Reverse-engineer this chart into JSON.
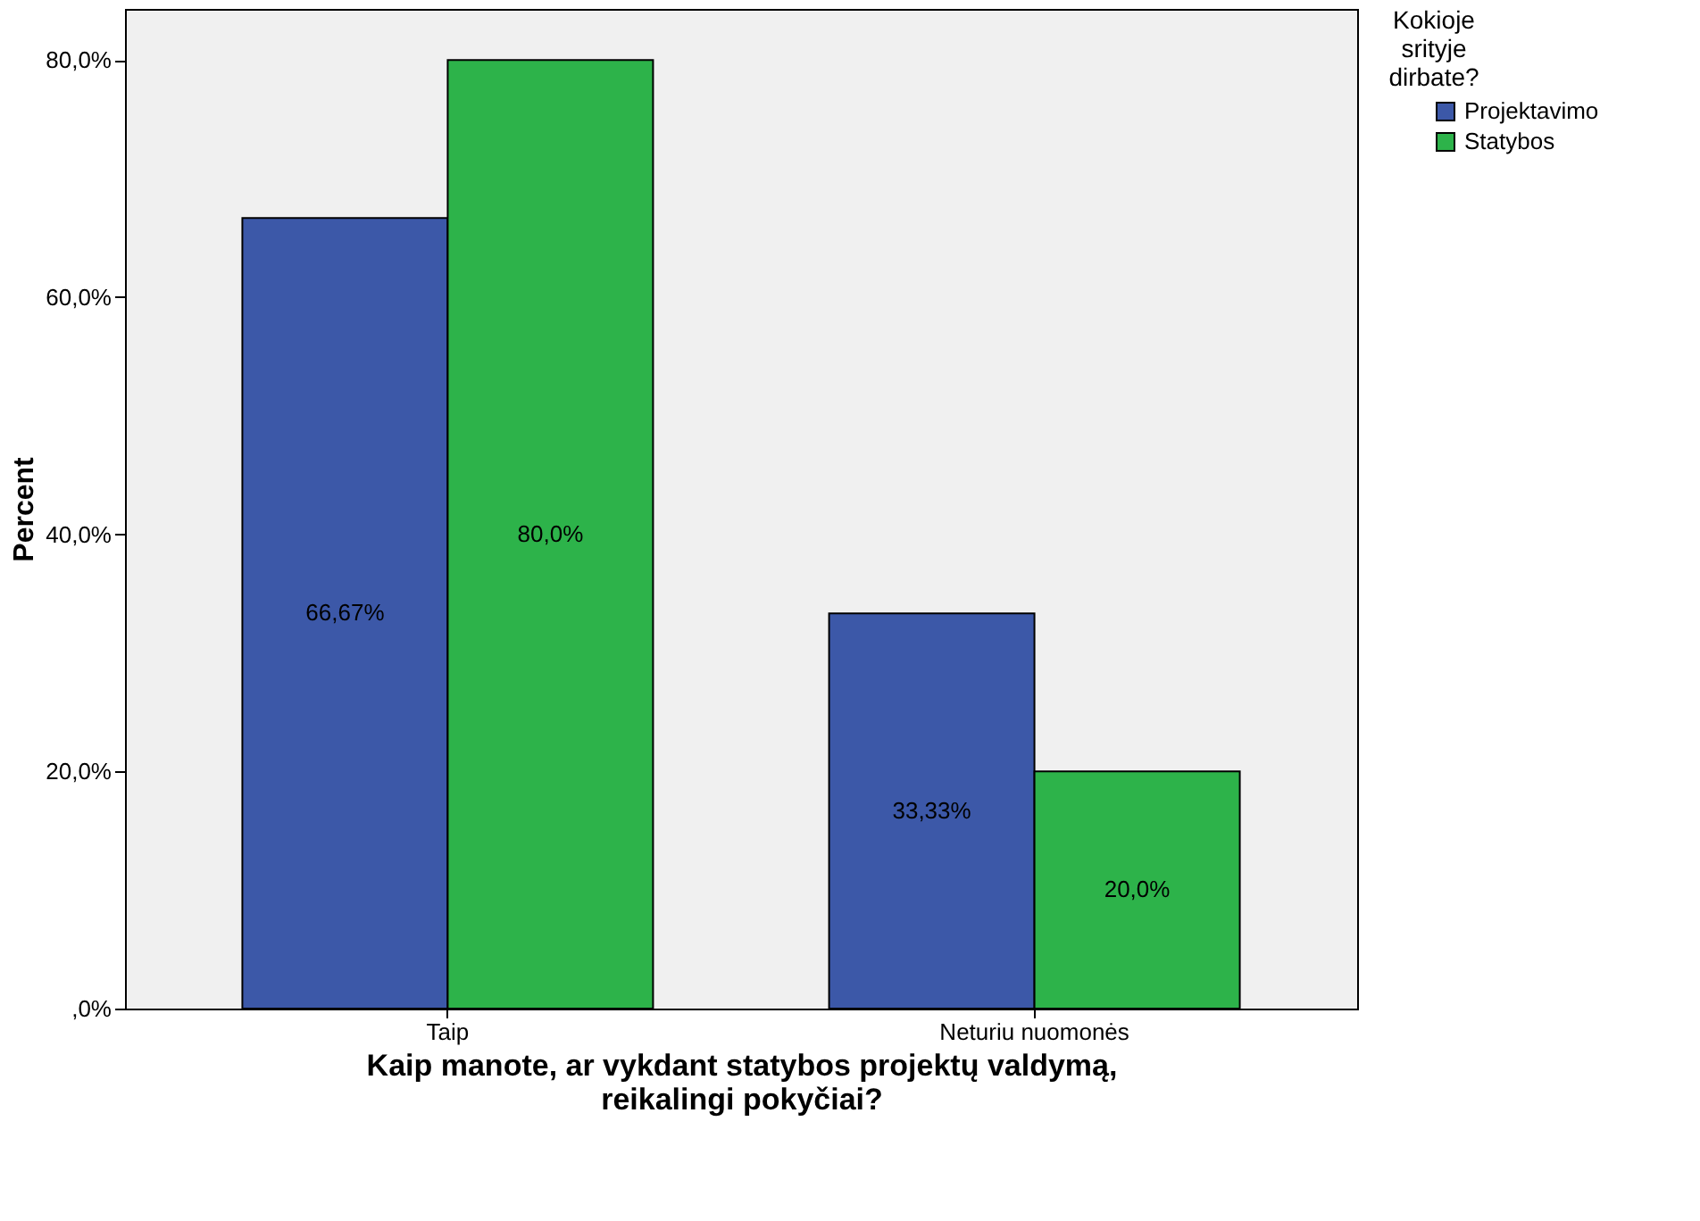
{
  "chart_data": {
    "type": "bar",
    "categories": [
      "Taip",
      "Neturiu nuomonės"
    ],
    "series": [
      {
        "name": "Projektavimo",
        "color": "#3c58a8",
        "values": [
          66.67,
          33.33
        ],
        "value_labels": [
          "66,67%",
          "33,33%"
        ]
      },
      {
        "name": "Statybos",
        "color": "#2db34a",
        "values": [
          80.0,
          20.0
        ],
        "value_labels": [
          "80,0%",
          "20,0%"
        ]
      }
    ],
    "ylim": [
      0,
      84.3
    ],
    "yticks": [
      {
        "value": 0,
        "label": ",0%"
      },
      {
        "value": 20,
        "label": "20,0%"
      },
      {
        "value": 40,
        "label": "40,0%"
      },
      {
        "value": 60,
        "label": "60,0%"
      },
      {
        "value": 80,
        "label": "80,0%"
      }
    ],
    "xlabel": "Kaip manote, ar vykdant statybos projektų valdymą, reikalingi pokyčiai?",
    "ylabel": "Percent",
    "legend_title": "Kokioje srityje dirbate?",
    "legend": "top right",
    "grid": false
  }
}
